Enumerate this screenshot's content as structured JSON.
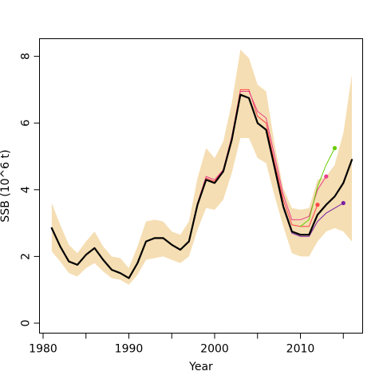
{
  "chart_data": {
    "type": "line",
    "title": "",
    "xlabel": "Year",
    "ylabel": "SSB (10^6 t)",
    "xlim": [
      1980,
      2017
    ],
    "ylim": [
      -0.3,
      8.5
    ],
    "x_ticks": [
      1980,
      1990,
      2000,
      2010
    ],
    "x_minor_ticks": [
      1985,
      1995,
      2005,
      2015
    ],
    "y_ticks": [
      0,
      2,
      4,
      6,
      8
    ],
    "grid": false,
    "legend": "none",
    "confidence_band": {
      "color": "#f5deb3",
      "x": [
        1981,
        1982,
        1983,
        1984,
        1985,
        1986,
        1987,
        1988,
        1989,
        1990,
        1991,
        1992,
        1993,
        1994,
        1995,
        1996,
        1997,
        1998,
        1999,
        2000,
        2001,
        2002,
        2003,
        2004,
        2005,
        2006,
        2007,
        2008,
        2009,
        2010,
        2011,
        2012,
        2013,
        2014,
        2015,
        2016
      ],
      "lower": [
        2.15,
        1.85,
        1.5,
        1.4,
        1.65,
        1.8,
        1.55,
        1.35,
        1.3,
        1.15,
        1.45,
        1.9,
        1.95,
        2.0,
        1.9,
        1.8,
        2.0,
        2.8,
        3.45,
        3.4,
        3.7,
        4.5,
        5.55,
        5.55,
        4.95,
        4.8,
        3.8,
        2.9,
        2.1,
        2.0,
        2.0,
        2.45,
        2.75,
        2.85,
        2.75,
        2.45
      ],
      "upper": [
        3.6,
        2.95,
        2.35,
        2.1,
        2.45,
        2.75,
        2.3,
        2.0,
        1.95,
        1.65,
        2.3,
        3.05,
        3.1,
        3.05,
        2.75,
        2.65,
        3.05,
        4.35,
        5.25,
        4.95,
        5.45,
        6.6,
        8.2,
        7.95,
        7.15,
        6.95,
        5.35,
        4.05,
        3.45,
        3.4,
        3.45,
        4.3,
        4.4,
        4.75,
        5.7,
        7.45
      ]
    },
    "series": [
      {
        "color": "#000000",
        "width": 2.2,
        "x": [
          1981,
          1982,
          1983,
          1984,
          1985,
          1986,
          1987,
          1988,
          1989,
          1990,
          1991,
          1992,
          1993,
          1994,
          1995,
          1996,
          1997,
          1998,
          1999,
          2000,
          2001,
          2002,
          2003,
          2004,
          2005,
          2006,
          2007,
          2008,
          2009,
          2010,
          2011,
          2012,
          2013,
          2014,
          2015,
          2016
        ],
        "values": [
          2.85,
          2.3,
          1.85,
          1.75,
          2.05,
          2.25,
          1.9,
          1.6,
          1.5,
          1.35,
          1.8,
          2.45,
          2.55,
          2.55,
          2.35,
          2.2,
          2.45,
          3.55,
          4.3,
          4.2,
          4.55,
          5.5,
          6.85,
          6.75,
          6.0,
          5.8,
          4.65,
          3.5,
          2.75,
          2.65,
          2.65,
          3.25,
          3.55,
          3.8,
          4.2,
          4.9
        ],
        "endpoint": null
      },
      {
        "color": "#ff4444",
        "width": 1,
        "x": [
          1981,
          1982,
          1983,
          1984,
          1985,
          1986,
          1987,
          1988,
          1989,
          1990,
          1991,
          1992,
          1993,
          1994,
          1995,
          1996,
          1997,
          1998,
          1999,
          2000,
          2001,
          2002,
          2003,
          2004,
          2005,
          2006,
          2007,
          2008,
          2009,
          2010,
          2011,
          2012
        ],
        "values": [
          2.85,
          2.3,
          1.85,
          1.75,
          2.05,
          2.25,
          1.9,
          1.6,
          1.5,
          1.35,
          1.8,
          2.45,
          2.55,
          2.55,
          2.35,
          2.2,
          2.45,
          3.55,
          4.35,
          4.25,
          4.6,
          5.55,
          7.0,
          7.0,
          6.2,
          6.0,
          4.8,
          3.7,
          2.95,
          2.9,
          2.9,
          3.55
        ],
        "endpoint": {
          "x": 2012,
          "y": 3.55
        }
      },
      {
        "color": "#e8408a",
        "width": 1,
        "x": [
          1981,
          1982,
          1983,
          1984,
          1985,
          1986,
          1987,
          1988,
          1989,
          1990,
          1991,
          1992,
          1993,
          1994,
          1995,
          1996,
          1997,
          1998,
          1999,
          2000,
          2001,
          2002,
          2003,
          2004,
          2005,
          2006,
          2007,
          2008,
          2009,
          2010,
          2011,
          2012,
          2013
        ],
        "values": [
          2.85,
          2.3,
          1.85,
          1.75,
          2.05,
          2.25,
          1.9,
          1.6,
          1.5,
          1.35,
          1.8,
          2.45,
          2.55,
          2.55,
          2.35,
          2.2,
          2.45,
          3.6,
          4.4,
          4.3,
          4.6,
          5.6,
          6.95,
          6.95,
          6.35,
          6.15,
          5.0,
          3.85,
          3.1,
          3.1,
          3.2,
          4.0,
          4.4
        ],
        "endpoint": {
          "x": 2013,
          "y": 4.4
        }
      },
      {
        "color": "#66cc00",
        "width": 1,
        "x": [
          2010,
          2011,
          2012,
          2013,
          2014
        ],
        "values": [
          2.9,
          3.1,
          4.1,
          4.75,
          5.25
        ],
        "endpoint": {
          "x": 2014,
          "y": 5.25
        }
      },
      {
        "color": "#7b1fa2",
        "width": 1,
        "x": [
          1981,
          1982,
          1983,
          1984,
          1985,
          1986,
          1987,
          1988,
          1989,
          1990,
          1991,
          1992,
          1993,
          1994,
          1995,
          1996,
          1997,
          1998,
          1999,
          2000,
          2001,
          2002,
          2003,
          2004,
          2005,
          2006,
          2007,
          2008,
          2009,
          2010,
          2011,
          2012,
          2013,
          2014,
          2015
        ],
        "values": [
          2.85,
          2.3,
          1.85,
          1.75,
          2.05,
          2.25,
          1.9,
          1.6,
          1.5,
          1.35,
          1.8,
          2.45,
          2.55,
          2.55,
          2.35,
          2.2,
          2.45,
          3.55,
          4.3,
          4.2,
          4.55,
          5.5,
          6.85,
          6.75,
          6.0,
          5.8,
          4.6,
          3.45,
          2.7,
          2.6,
          2.6,
          3.05,
          3.3,
          3.45,
          3.6
        ],
        "endpoint": {
          "x": 2015,
          "y": 3.6
        }
      }
    ]
  }
}
